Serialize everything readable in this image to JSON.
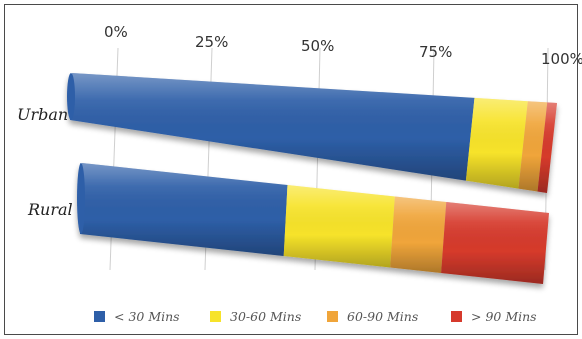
{
  "chart_data": {
    "type": "bar",
    "orientation": "horizontal",
    "stacked": "percent",
    "style": "3d-cylinder",
    "categories": [
      "Urban",
      "Rural"
    ],
    "series": [
      {
        "name": "< 30 Mins",
        "color": "#2e5fa8",
        "values": [
          83,
          44
        ]
      },
      {
        "name": "30-60 Mins",
        "color": "#f7e32a",
        "values": [
          11,
          23
        ]
      },
      {
        "name": "60-90 Mins",
        "color": "#f0a53a",
        "values": [
          4,
          11
        ]
      },
      {
        "name": "> 90 Mins",
        "color": "#d63a2c",
        "values": [
          2,
          22
        ]
      }
    ],
    "xlim": [
      0,
      100
    ],
    "x_ticks": [
      "0%",
      "25%",
      "50%",
      "75%",
      "100%"
    ],
    "grid": true,
    "legend_position": "bottom",
    "title": "",
    "xlabel": "",
    "ylabel": ""
  }
}
